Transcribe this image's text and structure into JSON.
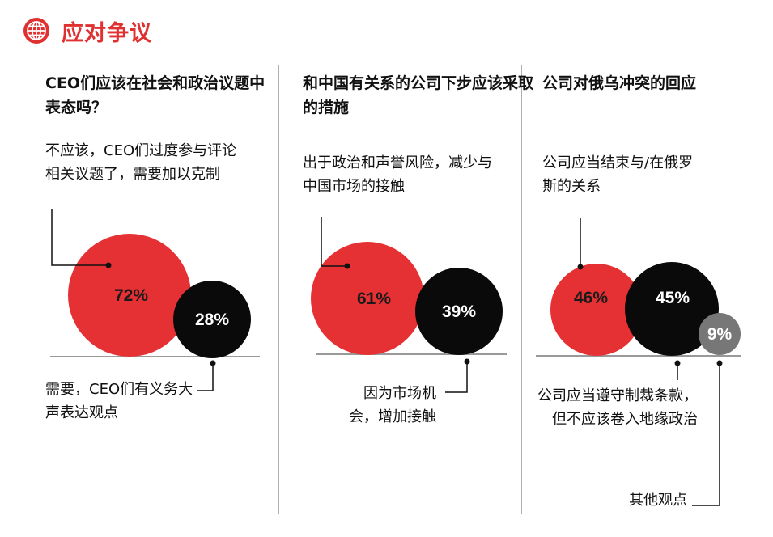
{
  "header": {
    "title": "应对争议",
    "icon": "globe-icon",
    "accent": "#e03030"
  },
  "colors": {
    "red": "#e53034",
    "black": "#0a0a0a",
    "gray": "#777777",
    "baseline": "#999999"
  },
  "panels": [
    {
      "question": "CEO们应该在社会和政治议题中表态吗？",
      "labels": {
        "red": "不应该，CEO们过度参与评论相关议题了，需要加以克制",
        "black": "需要，CEO们有义务大声表达观点"
      }
    },
    {
      "question": "和中国有关系的公司下步应该采取的措施",
      "labels": {
        "red": "出于政治和声誉风险，减少与中国市场的接触",
        "black": "因为市场机会，增加接触"
      }
    },
    {
      "question": "公司对俄乌冲突的回应",
      "labels": {
        "red": "公司应当结束与/在俄罗斯的关系",
        "black": "公司应当遵守制裁条款，但不应该卷入地缘政治",
        "gray": "其他观点"
      }
    }
  ],
  "chart_data": [
    {
      "type": "bubble",
      "title": "CEO们应该在社会和政治议题中表态吗？",
      "series": [
        {
          "label": "不应该，CEO们过度参与评论相关议题了，需要加以克制",
          "value": 72,
          "display": "72%",
          "color": "#e53034"
        },
        {
          "label": "需要，CEO们有义务大声表达观点",
          "value": 28,
          "display": "28%",
          "color": "#0a0a0a"
        }
      ]
    },
    {
      "type": "bubble",
      "title": "和中国有关系的公司下步应该采取的措施",
      "series": [
        {
          "label": "出于政治和声誉风险，减少与中国市场的接触",
          "value": 61,
          "display": "61%",
          "color": "#e53034"
        },
        {
          "label": "因为市场机会，增加接触",
          "value": 39,
          "display": "39%",
          "color": "#0a0a0a"
        }
      ]
    },
    {
      "type": "bubble",
      "title": "公司对俄乌冲突的回应",
      "series": [
        {
          "label": "公司应当结束与/在俄罗斯的关系",
          "value": 46,
          "display": "46%",
          "color": "#e53034"
        },
        {
          "label": "公司应当遵守制裁条款，但不应该卷入地缘政治",
          "value": 45,
          "display": "45%",
          "color": "#0a0a0a"
        },
        {
          "label": "其他观点",
          "value": 9,
          "display": "9%",
          "color": "#777777"
        }
      ]
    }
  ]
}
